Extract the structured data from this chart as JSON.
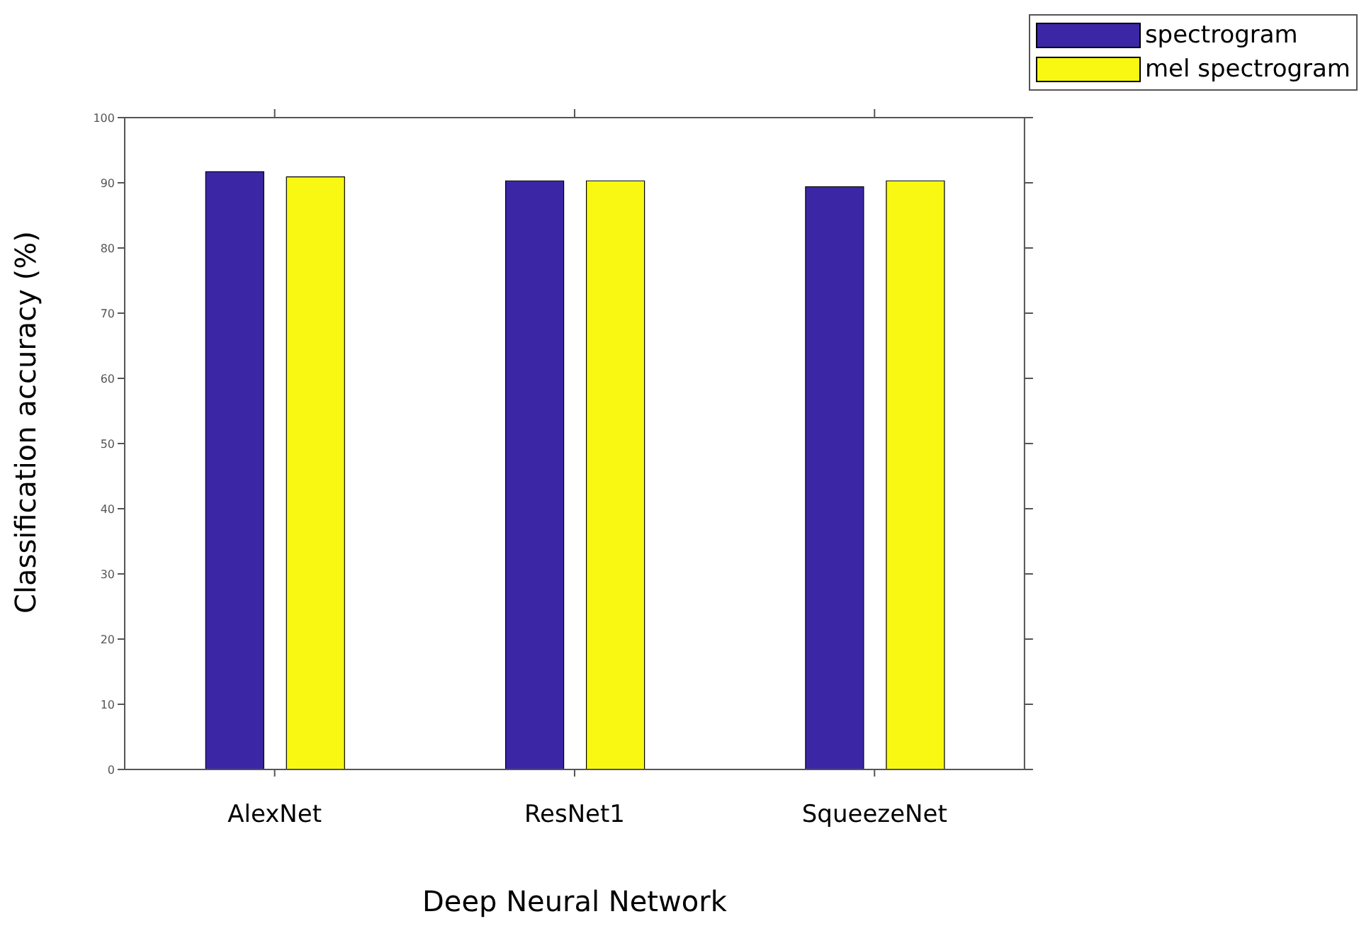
{
  "chart_data": {
    "type": "bar",
    "xlabel": "Deep Neural Network",
    "ylabel": "Classification accuracy (%)",
    "categories": [
      "AlexNet",
      "ResNet1",
      "SqueezeNet"
    ],
    "series": [
      {
        "name": "spectrogram",
        "color": "#3b27a5",
        "values": [
          91.7,
          90.3,
          89.4
        ]
      },
      {
        "name": "mel spectrogram",
        "color": "#f8f812",
        "values": [
          90.9,
          90.3,
          90.3
        ]
      }
    ],
    "ylim": [
      0,
      100
    ],
    "yticks": [
      0,
      10,
      20,
      30,
      40,
      50,
      60,
      70,
      80,
      90,
      100
    ],
    "grid": false,
    "legend": "top right"
  }
}
